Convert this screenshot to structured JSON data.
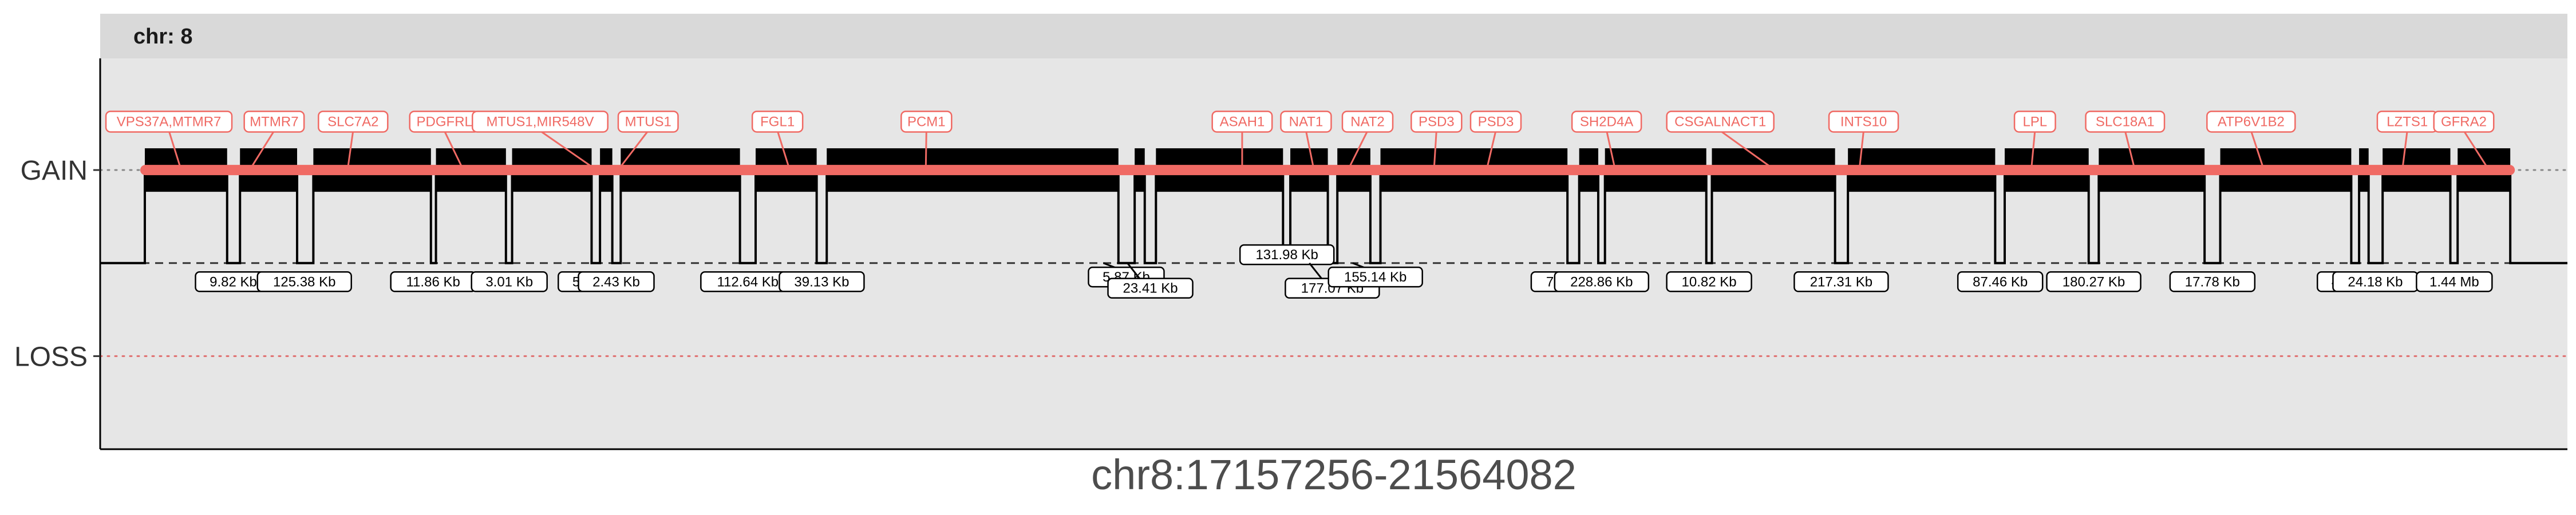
{
  "chart_data": {
    "type": "line",
    "panel_strip": "chr: 8",
    "xlabel": "chr8:17157256-21564082",
    "xlim": [
      17157256,
      21564082
    ],
    "y_categories": [
      "GAIN",
      "LOSS"
    ],
    "y_levels": {
      "GAIN": 1,
      "LOSS": -1
    },
    "ylim": [
      -2,
      2.2
    ],
    "reference_lines": {
      "gain": 1,
      "loss": -1,
      "baseline": 0
    },
    "colors": {
      "gain_bar": "#f06a64",
      "gene_label": "#f06a64",
      "panel_bg": "#e6e6e6",
      "strip_bg": "#d9d9d9",
      "signal": "#000000"
    },
    "segments": [
      {
        "start": 17237000,
        "end": 17384000
      },
      {
        "start": 17407000,
        "end": 17509000
      },
      {
        "start": 17538000,
        "end": 17748000
      },
      {
        "start": 17757000,
        "end": 17882000
      },
      {
        "start": 17893000,
        "end": 18035000
      },
      {
        "start": 18050000,
        "end": 18072000
      },
      {
        "start": 18087000,
        "end": 18300000
      },
      {
        "start": 18328000,
        "end": 18437000
      },
      {
        "start": 18455000,
        "end": 18976000
      },
      {
        "start": 19005000,
        "end": 19023000
      },
      {
        "start": 19043000,
        "end": 19270000
      },
      {
        "start": 19283000,
        "end": 19350000
      },
      {
        "start": 19367000,
        "end": 19426000
      },
      {
        "start": 19444000,
        "end": 19778000
      },
      {
        "start": 19799000,
        "end": 19833000
      },
      {
        "start": 19845000,
        "end": 20026000
      },
      {
        "start": 20036000,
        "end": 20256000
      },
      {
        "start": 20279000,
        "end": 20542000
      },
      {
        "start": 20559000,
        "end": 20709000
      },
      {
        "start": 20727000,
        "end": 20916000
      },
      {
        "start": 20944000,
        "end": 21178000
      },
      {
        "start": 21192000,
        "end": 21209000
      },
      {
        "start": 21234000,
        "end": 21355000
      },
      {
        "start": 21368000,
        "end": 21462000
      }
    ],
    "genes": [
      {
        "name": "VPS37A,MTMR7",
        "pos": 17300000,
        "label_pos": 17280000
      },
      {
        "name": "MTMR7",
        "pos": 17428000,
        "label_pos": 17468000
      },
      {
        "name": "SLC7A2",
        "pos": 17600000,
        "label_pos": 17609000
      },
      {
        "name": "PDGFRL",
        "pos": 17803000,
        "label_pos": 17772000
      },
      {
        "name": "MTUS1,MIR548V",
        "pos": 18035000,
        "label_pos": 17943000
      },
      {
        "name": "MTUS1",
        "pos": 18087000,
        "label_pos": 18136000
      },
      {
        "name": "FGL1",
        "pos": 18387000,
        "label_pos": 18367000
      },
      {
        "name": "PCM1",
        "pos": 18632000,
        "label_pos": 18633000
      },
      {
        "name": "ASAH1",
        "pos": 19197000,
        "label_pos": 19197000
      },
      {
        "name": "NAT1",
        "pos": 19324000,
        "label_pos": 19311000
      },
      {
        "name": "NAT2",
        "pos": 19389000,
        "label_pos": 19421000
      },
      {
        "name": "PSD3",
        "pos": 19540000,
        "label_pos": 19544000
      },
      {
        "name": "PSD3",
        "pos": 19635000,
        "label_pos": 19650000
      },
      {
        "name": "SH2D4A",
        "pos": 19862000,
        "label_pos": 19848000
      },
      {
        "name": "CSGALNACT1",
        "pos": 20140000,
        "label_pos": 20051000
      },
      {
        "name": "INTS10",
        "pos": 20300000,
        "label_pos": 20307000
      },
      {
        "name": "LPL",
        "pos": 20607000,
        "label_pos": 20613000
      },
      {
        "name": "SLC18A1",
        "pos": 20790000,
        "label_pos": 20774000
      },
      {
        "name": "ATP6V1B2",
        "pos": 21020000,
        "label_pos": 20999000
      },
      {
        "name": "LZTS1",
        "pos": 21270000,
        "label_pos": 21278000
      },
      {
        "name": "GFRA2",
        "pos": 21420000,
        "label_pos": 21379000
      }
    ],
    "gaps": [
      {
        "label": "9.82 Kb",
        "pos": 17395000,
        "level": -0.2
      },
      {
        "label": "125.38 Kb",
        "pos": 17522000,
        "level": -0.2
      },
      {
        "label": "11.86 Kb",
        "pos": 17752000,
        "level": -0.2
      },
      {
        "label": "3.01 Kb",
        "pos": 17888000,
        "level": -0.2
      },
      {
        "label": "5.12 Kb",
        "pos": 18043000,
        "level": -0.2
      },
      {
        "label": "2.43 Kb",
        "pos": 18079000,
        "level": -0.2
      },
      {
        "label": "112.64 Kb",
        "pos": 18314000,
        "level": -0.2
      },
      {
        "label": "39.13 Kb",
        "pos": 18446000,
        "level": -0.2
      },
      {
        "label": "5.87 Kb",
        "pos": 18990000,
        "level": -0.15
      },
      {
        "label": "23.41 Kb",
        "pos": 19033000,
        "level": -0.27
      },
      {
        "label": "131.98 Kb",
        "pos": 19277000,
        "level": 0.09
      },
      {
        "label": "177.07 Kb",
        "pos": 19358000,
        "level": -0.27
      },
      {
        "label": "155.14 Kb",
        "pos": 19435000,
        "level": -0.15
      },
      {
        "label": "70.36 Kb",
        "pos": 19789000,
        "level": -0.2
      },
      {
        "label": "228.86 Kb",
        "pos": 19839000,
        "level": -0.2
      },
      {
        "label": "10.82 Kb",
        "pos": 20031000,
        "level": -0.2
      },
      {
        "label": "217.31 Kb",
        "pos": 20267000,
        "level": -0.2
      },
      {
        "label": "87.46 Kb",
        "pos": 20551000,
        "level": -0.2
      },
      {
        "label": "180.27 Kb",
        "pos": 20718000,
        "level": -0.2
      },
      {
        "label": "17.78 Kb",
        "pos": 20930000,
        "level": -0.2
      },
      {
        "label": "4.49 Kb",
        "pos": 21185000,
        "level": -0.2
      },
      {
        "label": "24.18 Kb",
        "pos": 21221000,
        "level": -0.2
      },
      {
        "label": "1.44 Mb",
        "pos": 21362000,
        "level": -0.2
      }
    ]
  }
}
